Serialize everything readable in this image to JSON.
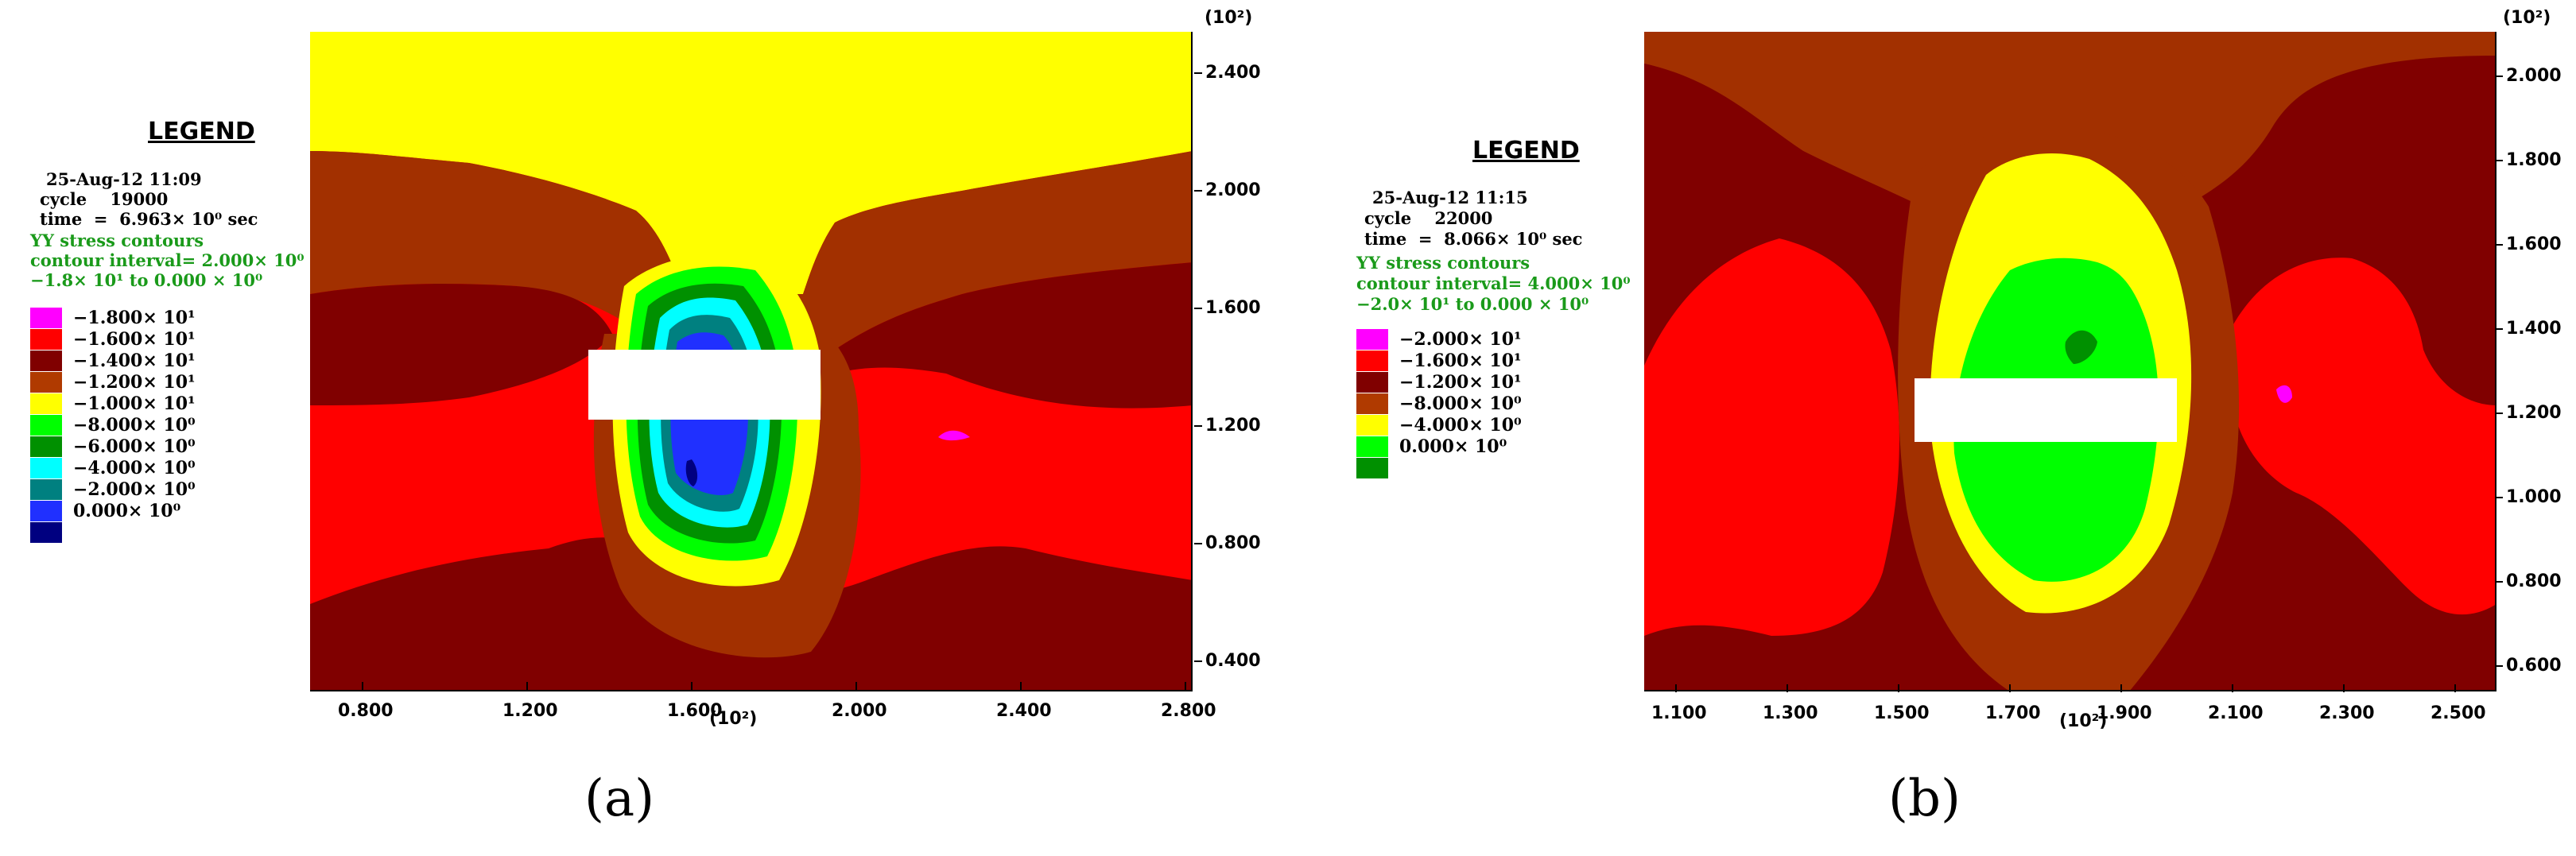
{
  "panel_a": {
    "legend": {
      "title": "LEGEND",
      "date": "25-Aug-12 11:09",
      "cycle": "cycle    19000",
      "time": "time  =  6.963× 10⁰ sec",
      "contour_name": "YY stress contours",
      "contour_interval": "contour interval= 2.000× 10⁰",
      "range": "−1.8× 10¹ to 0.000 × 10⁰",
      "items": [
        {
          "label": "−1.800× 10¹",
          "color": "#ff00ff"
        },
        {
          "label": "−1.600× 10¹",
          "color": "#ff0000"
        },
        {
          "label": "−1.400× 10¹",
          "color": "#800000"
        },
        {
          "label": "−1.200× 10¹",
          "color": "#b03a00"
        },
        {
          "label": "−1.000× 10¹",
          "color": "#ffff00"
        },
        {
          "label": "−8.000× 10⁰",
          "color": "#00ff00"
        },
        {
          "label": "−6.000× 10⁰",
          "color": "#009000"
        },
        {
          "label": "−4.000× 10⁰",
          "color": "#00ffff"
        },
        {
          "label": "−2.000× 10⁰",
          "color": "#008080"
        },
        {
          "label": "0.000× 10⁰",
          "color": "#2030ff"
        },
        {
          "label": "",
          "color": "#000080"
        }
      ]
    },
    "x_ticks": [
      "0.800",
      "1.200",
      "1.600",
      "2.000",
      "2.400",
      "2.800"
    ],
    "y_ticks": [
      "2.400",
      "2.000",
      "1.600",
      "1.200",
      "0.800",
      "0.400"
    ],
    "x_unit": "(10²)",
    "y_unit": "(10²)",
    "caption": "(a)"
  },
  "panel_b": {
    "legend": {
      "title": "LEGEND",
      "date": "25-Aug-12 11:15",
      "cycle": "cycle    22000",
      "time": "time  =  8.066× 10⁰ sec",
      "contour_name": "YY stress contours",
      "contour_interval": "contour interval= 4.000× 10⁰",
      "range": "−2.0× 10¹ to 0.000 × 10⁰",
      "items": [
        {
          "label": "−2.000× 10¹",
          "color": "#ff00ff"
        },
        {
          "label": "−1.600× 10¹",
          "color": "#ff0000"
        },
        {
          "label": "−1.200× 10¹",
          "color": "#800000"
        },
        {
          "label": "−8.000× 10⁰",
          "color": "#b03a00"
        },
        {
          "label": "−4.000× 10⁰",
          "color": "#ffff00"
        },
        {
          "label": "0.000× 10⁰",
          "color": "#00ff00"
        },
        {
          "label": "",
          "color": "#009000"
        }
      ]
    },
    "x_ticks": [
      "1.100",
      "1.300",
      "1.500",
      "1.700",
      "1.900",
      "2.100",
      "2.300",
      "2.500"
    ],
    "y_ticks": [
      "2.000",
      "1.800",
      "1.600",
      "1.400",
      "1.200",
      "1.000",
      "0.800",
      "0.600"
    ],
    "x_unit": "(10²)",
    "y_unit": "(10²)",
    "caption": "(b)"
  }
}
